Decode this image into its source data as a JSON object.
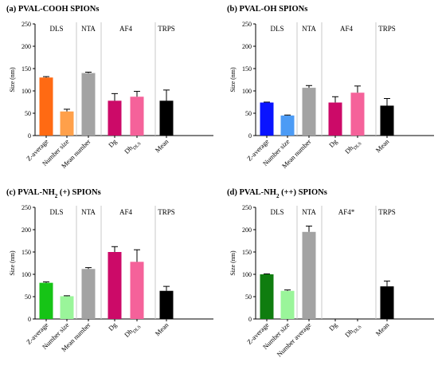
{
  "chart_data": [
    {
      "type": "bar",
      "title": "(a) PVAL-COOH SPIONs",
      "title_sub": "",
      "title_rest": "",
      "ylabel": "Size (nm)",
      "ylim": [
        0,
        250
      ],
      "yticks": [
        "0",
        "50",
        "100",
        "150",
        "200",
        "250"
      ],
      "groups": [
        {
          "label": "DLS",
          "bars": [
            0,
            1
          ]
        },
        {
          "label": "NTA",
          "bars": [
            2
          ]
        },
        {
          "label": "AF4",
          "bars": [
            3,
            4
          ]
        },
        {
          "label": "TRPS",
          "bars": [
            5
          ]
        }
      ],
      "categories": [
        {
          "text": "Z-average",
          "sub": ""
        },
        {
          "text": "Number size",
          "sub": ""
        },
        {
          "text": "Mean number",
          "sub": ""
        },
        {
          "text": "Dg",
          "sub": ""
        },
        {
          "text": "Dh",
          "sub": "DLS"
        },
        {
          "text": "Mean",
          "sub": ""
        }
      ],
      "values": [
        130,
        54,
        140,
        78,
        87,
        78
      ],
      "errors": [
        2,
        5,
        2,
        16,
        12,
        24
      ],
      "colors": [
        "#ff6a13",
        "#ffa04a",
        "#a3a3a3",
        "#cc0a68",
        "#f5629a",
        "#000000"
      ]
    },
    {
      "type": "bar",
      "title": "(b) PVAL-OH SPIONs",
      "title_sub": "",
      "title_rest": "",
      "ylabel": "Size (nm)",
      "ylim": [
        0,
        250
      ],
      "yticks": [
        "0",
        "50",
        "100",
        "150",
        "200",
        "250"
      ],
      "groups": [
        {
          "label": "DLS",
          "bars": [
            0,
            1
          ]
        },
        {
          "label": "NTA",
          "bars": [
            2
          ]
        },
        {
          "label": "AF4",
          "bars": [
            3,
            4
          ]
        },
        {
          "label": "TRPS",
          "bars": [
            5
          ]
        }
      ],
      "categories": [
        {
          "text": "Z-average",
          "sub": ""
        },
        {
          "text": "Number size",
          "sub": ""
        },
        {
          "text": "Mean number",
          "sub": ""
        },
        {
          "text": "Dg",
          "sub": ""
        },
        {
          "text": "Dh",
          "sub": "DLS"
        },
        {
          "text": "Mean",
          "sub": ""
        }
      ],
      "values": [
        74,
        45,
        107,
        74,
        96,
        67
      ],
      "errors": [
        1,
        1,
        5,
        13,
        15,
        16
      ],
      "colors": [
        "#0a14ff",
        "#4c9bf5",
        "#a3a3a3",
        "#cc0a68",
        "#f5629a",
        "#000000"
      ]
    },
    {
      "type": "bar",
      "title": "(c) PVAL-NH",
      "title_sub": "2",
      "title_rest": " (+) SPIONs",
      "ylabel": "Size (nm)",
      "ylim": [
        0,
        250
      ],
      "yticks": [
        "0",
        "50",
        "100",
        "150",
        "200",
        "250"
      ],
      "groups": [
        {
          "label": "DLS",
          "bars": [
            0,
            1
          ]
        },
        {
          "label": "NTA",
          "bars": [
            2
          ]
        },
        {
          "label": "AF4",
          "bars": [
            3,
            4
          ]
        },
        {
          "label": "TRPS",
          "bars": [
            5
          ]
        }
      ],
      "categories": [
        {
          "text": "Z-average",
          "sub": ""
        },
        {
          "text": "Number size",
          "sub": ""
        },
        {
          "text": "Mean number",
          "sub": ""
        },
        {
          "text": "Dg",
          "sub": ""
        },
        {
          "text": "Dh",
          "sub": "DLS"
        },
        {
          "text": "Mean",
          "sub": ""
        }
      ],
      "values": [
        81,
        51,
        112,
        150,
        128,
        63
      ],
      "errors": [
        2,
        1,
        3,
        12,
        27,
        10
      ],
      "colors": [
        "#16c416",
        "#9af59a",
        "#a3a3a3",
        "#cc0a68",
        "#f5629a",
        "#000000"
      ]
    },
    {
      "type": "bar",
      "title": "(d) PVAL-NH",
      "title_sub": "2",
      "title_rest": " (++) SPIONs",
      "ylabel": "Size (nm)",
      "ylim": [
        0,
        250
      ],
      "yticks": [
        "0",
        "50",
        "100",
        "150",
        "200",
        "250"
      ],
      "groups": [
        {
          "label": "DLS",
          "bars": [
            0,
            1
          ]
        },
        {
          "label": "NTA",
          "bars": [
            2
          ]
        },
        {
          "label": "AF4*",
          "bars": [
            3,
            4
          ]
        },
        {
          "label": "TRPS",
          "bars": [
            5
          ]
        }
      ],
      "categories": [
        {
          "text": "Z-average",
          "sub": ""
        },
        {
          "text": "Number size",
          "sub": ""
        },
        {
          "text": "Number average",
          "sub": ""
        },
        {
          "text": "Dg",
          "sub": ""
        },
        {
          "text": "Dh",
          "sub": "DLS"
        },
        {
          "text": "Mean",
          "sub": ""
        }
      ],
      "values": [
        100,
        63,
        195,
        null,
        null,
        73
      ],
      "errors": [
        1,
        2,
        13,
        null,
        null,
        12
      ],
      "colors": [
        "#0f7d0f",
        "#9af59a",
        "#a3a3a3",
        "#cc0a68",
        "#f5629a",
        "#000000"
      ]
    }
  ]
}
